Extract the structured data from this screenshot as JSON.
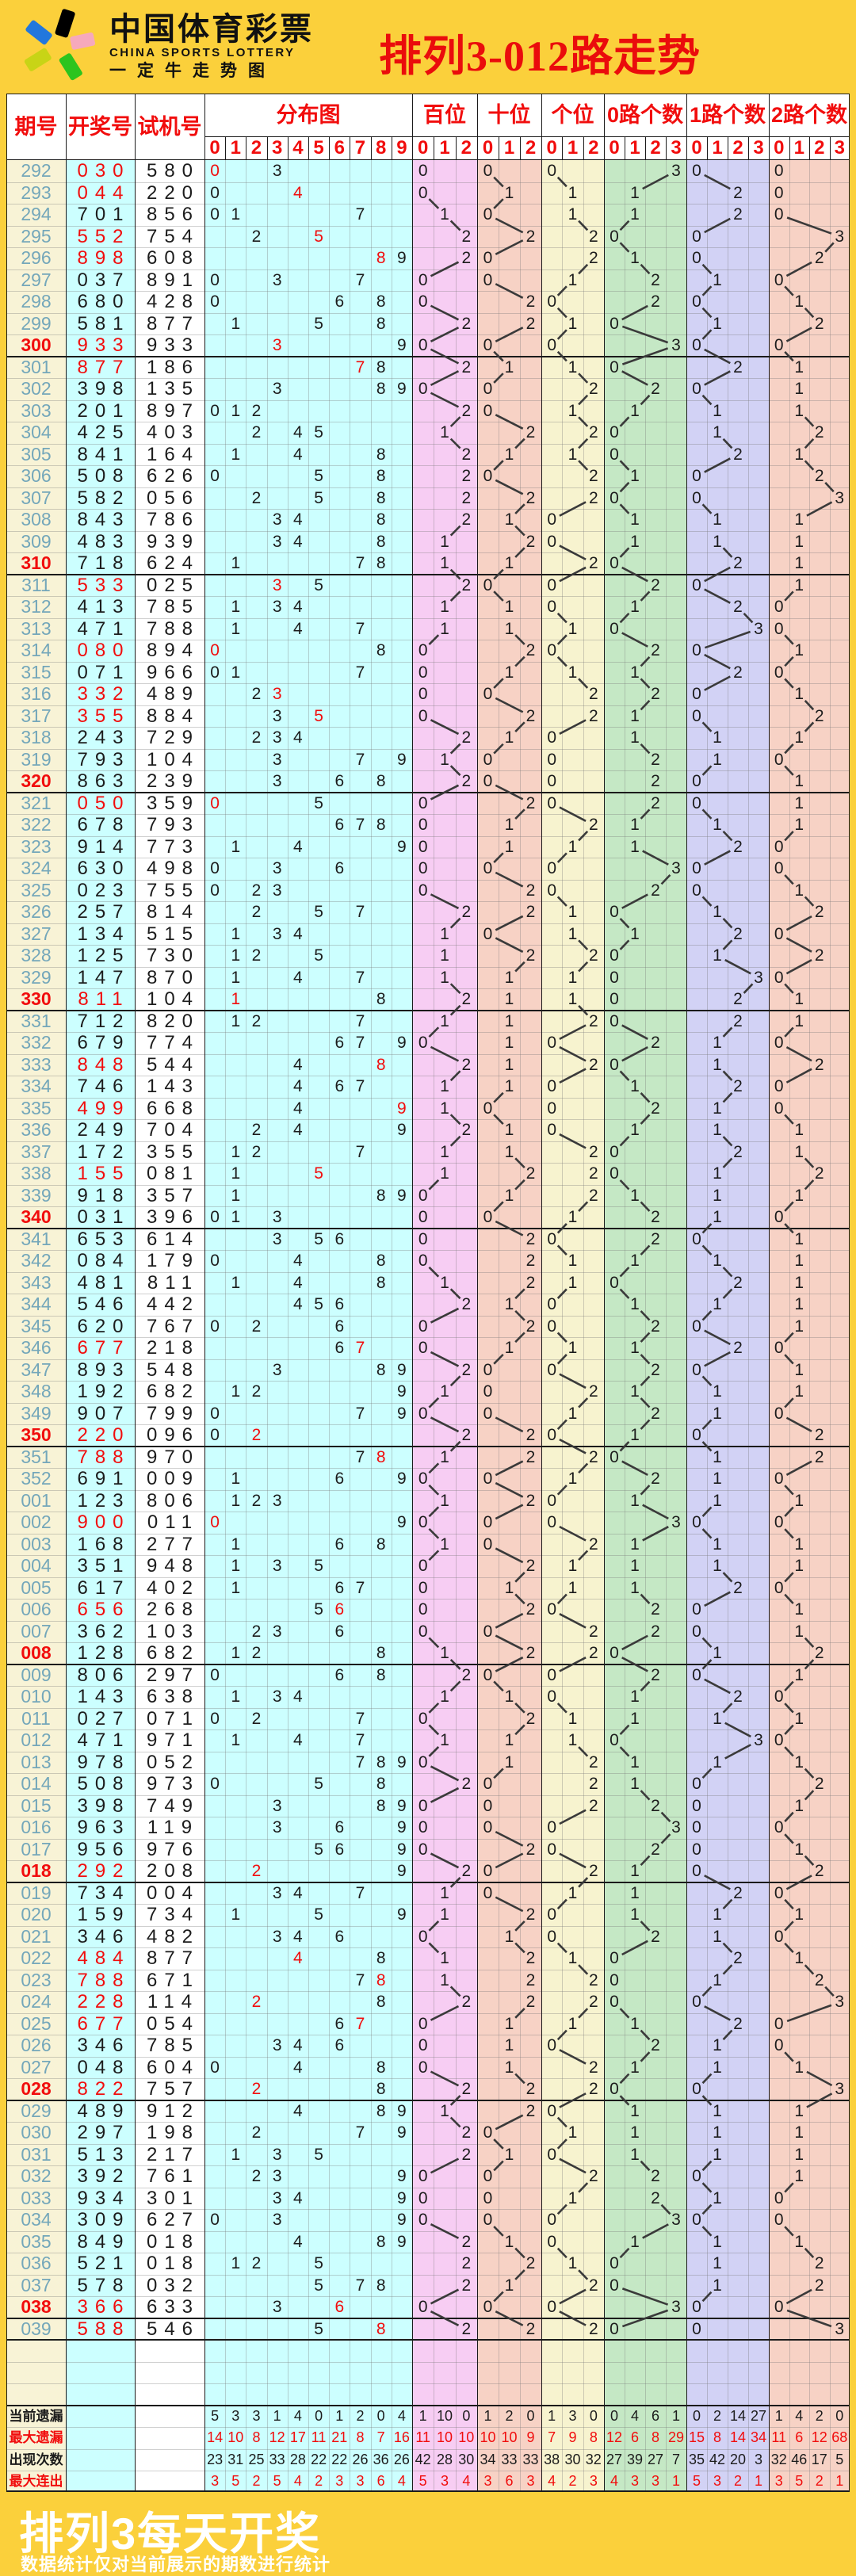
{
  "banner": {
    "logo_cn": "中国体育彩票",
    "logo_en": "CHINA SPORTS LOTTERY",
    "logo_slogan": "一定牛走势图",
    "title": "排列3-012路走势"
  },
  "footer": {
    "heading": "排列3每天开奖",
    "note": "数据统计仅对当前展示的期数进行统计"
  },
  "header": {
    "period": "期号",
    "draw": "开奖号",
    "test": "试机号",
    "sections": [
      {
        "key": "dist",
        "label": "分布图",
        "ticks": [
          "0",
          "1",
          "2",
          "3",
          "4",
          "5",
          "6",
          "7",
          "8",
          "9"
        ]
      },
      {
        "key": "bai",
        "label": "百位",
        "ticks": [
          "0",
          "1",
          "2"
        ]
      },
      {
        "key": "shi",
        "label": "十位",
        "ticks": [
          "0",
          "1",
          "2"
        ]
      },
      {
        "key": "ge",
        "label": "个位",
        "ticks": [
          "0",
          "1",
          "2"
        ]
      },
      {
        "key": "r0",
        "label": "0路个数",
        "ticks": [
          "0",
          "1",
          "2",
          "3"
        ]
      },
      {
        "key": "r1",
        "label": "1路个数",
        "ticks": [
          "0",
          "1",
          "2",
          "3"
        ]
      },
      {
        "key": "r2",
        "label": "2路个数",
        "ticks": [
          "0",
          "1",
          "2",
          "3"
        ]
      }
    ]
  },
  "chart_data": {
    "type": "table",
    "row_fields": [
      "period",
      "draw_number",
      "test_number"
    ],
    "rows": [
      [
        "292",
        "030",
        "580"
      ],
      [
        "293",
        "044",
        "220"
      ],
      [
        "294",
        "701",
        "856"
      ],
      [
        "295",
        "552",
        "754"
      ],
      [
        "296",
        "898",
        "608"
      ],
      [
        "297",
        "037",
        "891"
      ],
      [
        "298",
        "680",
        "428"
      ],
      [
        "299",
        "581",
        "877"
      ],
      [
        "300",
        "933",
        "933"
      ],
      [
        "301",
        "877",
        "186"
      ],
      [
        "302",
        "398",
        "135"
      ],
      [
        "303",
        "201",
        "897"
      ],
      [
        "304",
        "425",
        "403"
      ],
      [
        "305",
        "841",
        "164"
      ],
      [
        "306",
        "508",
        "626"
      ],
      [
        "307",
        "582",
        "056"
      ],
      [
        "308",
        "843",
        "786"
      ],
      [
        "309",
        "483",
        "939"
      ],
      [
        "310",
        "718",
        "624"
      ],
      [
        "311",
        "533",
        "025"
      ],
      [
        "312",
        "413",
        "785"
      ],
      [
        "313",
        "471",
        "788"
      ],
      [
        "314",
        "080",
        "894"
      ],
      [
        "315",
        "071",
        "966"
      ],
      [
        "316",
        "332",
        "489"
      ],
      [
        "317",
        "355",
        "884"
      ],
      [
        "318",
        "243",
        "729"
      ],
      [
        "319",
        "793",
        "104"
      ],
      [
        "320",
        "863",
        "239"
      ],
      [
        "321",
        "050",
        "359"
      ],
      [
        "322",
        "678",
        "793"
      ],
      [
        "323",
        "914",
        "773"
      ],
      [
        "324",
        "630",
        "498"
      ],
      [
        "325",
        "023",
        "755"
      ],
      [
        "326",
        "257",
        "814"
      ],
      [
        "327",
        "134",
        "515"
      ],
      [
        "328",
        "125",
        "730"
      ],
      [
        "329",
        "147",
        "870"
      ],
      [
        "330",
        "811",
        "104"
      ],
      [
        "331",
        "712",
        "820"
      ],
      [
        "332",
        "679",
        "774"
      ],
      [
        "333",
        "848",
        "544"
      ],
      [
        "334",
        "746",
        "143"
      ],
      [
        "335",
        "499",
        "668"
      ],
      [
        "336",
        "249",
        "704"
      ],
      [
        "337",
        "172",
        "355"
      ],
      [
        "338",
        "155",
        "081"
      ],
      [
        "339",
        "918",
        "357"
      ],
      [
        "340",
        "031",
        "396"
      ],
      [
        "341",
        "653",
        "614"
      ],
      [
        "342",
        "084",
        "179"
      ],
      [
        "343",
        "481",
        "811"
      ],
      [
        "344",
        "546",
        "442"
      ],
      [
        "345",
        "620",
        "767"
      ],
      [
        "346",
        "677",
        "218"
      ],
      [
        "347",
        "893",
        "548"
      ],
      [
        "348",
        "192",
        "682"
      ],
      [
        "349",
        "907",
        "799"
      ],
      [
        "350",
        "220",
        "096"
      ],
      [
        "351",
        "788",
        "970"
      ],
      [
        "352",
        "691",
        "009"
      ],
      [
        "001",
        "123",
        "806"
      ],
      [
        "002",
        "900",
        "011"
      ],
      [
        "003",
        "168",
        "277"
      ],
      [
        "004",
        "351",
        "948"
      ],
      [
        "005",
        "617",
        "402"
      ],
      [
        "006",
        "656",
        "268"
      ],
      [
        "007",
        "362",
        "103"
      ],
      [
        "008",
        "128",
        "682"
      ],
      [
        "009",
        "806",
        "297"
      ],
      [
        "010",
        "143",
        "638"
      ],
      [
        "011",
        "027",
        "071"
      ],
      [
        "012",
        "471",
        "971"
      ],
      [
        "013",
        "978",
        "052"
      ],
      [
        "014",
        "508",
        "973"
      ],
      [
        "015",
        "398",
        "749"
      ],
      [
        "016",
        "963",
        "119"
      ],
      [
        "017",
        "956",
        "976"
      ],
      [
        "018",
        "292",
        "208"
      ],
      [
        "019",
        "734",
        "004"
      ],
      [
        "020",
        "159",
        "734"
      ],
      [
        "021",
        "346",
        "482"
      ],
      [
        "022",
        "484",
        "877"
      ],
      [
        "023",
        "788",
        "671"
      ],
      [
        "024",
        "228",
        "114"
      ],
      [
        "025",
        "677",
        "054"
      ],
      [
        "026",
        "346",
        "785"
      ],
      [
        "027",
        "048",
        "604"
      ],
      [
        "028",
        "822",
        "757"
      ],
      [
        "029",
        "489",
        "912"
      ],
      [
        "030",
        "297",
        "198"
      ],
      [
        "031",
        "513",
        "217"
      ],
      [
        "032",
        "392",
        "761"
      ],
      [
        "033",
        "934",
        "301"
      ],
      [
        "034",
        "309",
        "627"
      ],
      [
        "035",
        "849",
        "018"
      ],
      [
        "036",
        "521",
        "018"
      ],
      [
        "037",
        "578",
        "032"
      ],
      [
        "038",
        "366",
        "633"
      ],
      [
        "039",
        "588",
        "546"
      ]
    ],
    "summary": [
      {
        "label": "当前遗漏",
        "color": "black",
        "dist": [
          "5",
          "3",
          "3",
          "1",
          "4",
          "0",
          "1",
          "2",
          "0",
          "4"
        ],
        "bai": [
          "1",
          "10",
          "0"
        ],
        "shi": [
          "1",
          "2",
          "0"
        ],
        "ge": [
          "1",
          "3",
          "0"
        ],
        "r0": [
          "0",
          "4",
          "6",
          "1"
        ],
        "r1": [
          "0",
          "2",
          "14",
          "27"
        ],
        "r2": [
          "1",
          "4",
          "2",
          "0"
        ]
      },
      {
        "label": "最大遗漏",
        "color": "red",
        "dist": [
          "14",
          "10",
          "8",
          "12",
          "17",
          "11",
          "21",
          "8",
          "7",
          "16"
        ],
        "bai": [
          "11",
          "10",
          "10"
        ],
        "shi": [
          "10",
          "10",
          "9"
        ],
        "ge": [
          "7",
          "9",
          "8"
        ],
        "r0": [
          "12",
          "6",
          "8",
          "29"
        ],
        "r1": [
          "15",
          "8",
          "14",
          "34"
        ],
        "r2": [
          "11",
          "6",
          "12",
          "68"
        ]
      },
      {
        "label": "出现次数",
        "color": "black",
        "dist": [
          "23",
          "31",
          "25",
          "33",
          "28",
          "22",
          "22",
          "26",
          "36",
          "26"
        ],
        "bai": [
          "42",
          "28",
          "30"
        ],
        "shi": [
          "34",
          "33",
          "33"
        ],
        "ge": [
          "38",
          "30",
          "32"
        ],
        "r0": [
          "27",
          "39",
          "27",
          "7"
        ],
        "r1": [
          "35",
          "42",
          "20",
          "3"
        ],
        "r2": [
          "32",
          "46",
          "17",
          "5"
        ]
      },
      {
        "label": "最大连出",
        "color": "red",
        "dist": [
          "3",
          "5",
          "2",
          "5",
          "4",
          "2",
          "3",
          "3",
          "6",
          "4"
        ],
        "bai": [
          "5",
          "3",
          "4"
        ],
        "shi": [
          "3",
          "6",
          "3"
        ],
        "ge": [
          "4",
          "2",
          "3"
        ],
        "r0": [
          "4",
          "3",
          "3",
          "1"
        ],
        "r1": [
          "5",
          "3",
          "2",
          "1"
        ],
        "r2": [
          "3",
          "5",
          "2",
          "1"
        ]
      }
    ]
  },
  "colors": {
    "page_yellow": "#fbd03b",
    "title_red": "#ea0c0c",
    "header_text_red": "#f10d0d",
    "period_blue": "#74a7ba",
    "period_bg": "#f8f3d6",
    "draw_bg": "#ccffff",
    "test_bg": "#ffffff",
    "dist_bg": "#ccffff",
    "bai_bg": "#f7cdf3",
    "shi_bg": "#f7d2c5",
    "ge_bg": "#f7f3cf",
    "r0_bg": "#c5e8c5",
    "r1_bg": "#d2d2f5",
    "r2_bg": "#f7d2c5",
    "mark_black": "#1c1c1c",
    "mark_red": "#f10d0d",
    "trend_line": "#3a3a3a"
  }
}
